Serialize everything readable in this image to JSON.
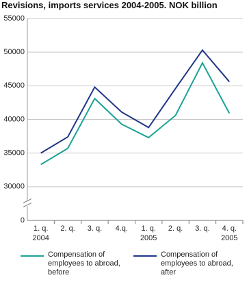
{
  "chart_data": {
    "type": "line",
    "title": "Revisions, imports services 2004-2005. NOK billion",
    "categories": [
      "1. q.",
      "2. q.",
      "3. q.",
      "4.q.",
      "1. q.",
      "2. q.",
      "3. q.",
      "4. q."
    ],
    "category_years": [
      "2004",
      null,
      null,
      null,
      "2005",
      null,
      null,
      "2005"
    ],
    "series": [
      {
        "name": "Compensation of employees to abroad, before",
        "color": "#1aa394",
        "values": [
          33300,
          35700,
          43100,
          39300,
          37300,
          40600,
          48400,
          40900
        ]
      },
      {
        "name": "Compensation of employees to abroad, after",
        "color": "#1f3587",
        "values": [
          35000,
          37400,
          44800,
          41100,
          38800,
          44600,
          50300,
          45600
        ]
      }
    ],
    "ylim": [
      0,
      55000
    ],
    "yticks": [
      0,
      30000,
      35000,
      40000,
      45000,
      50000,
      55000
    ],
    "broken_axis": true,
    "grid": true,
    "legend": "bottom"
  }
}
